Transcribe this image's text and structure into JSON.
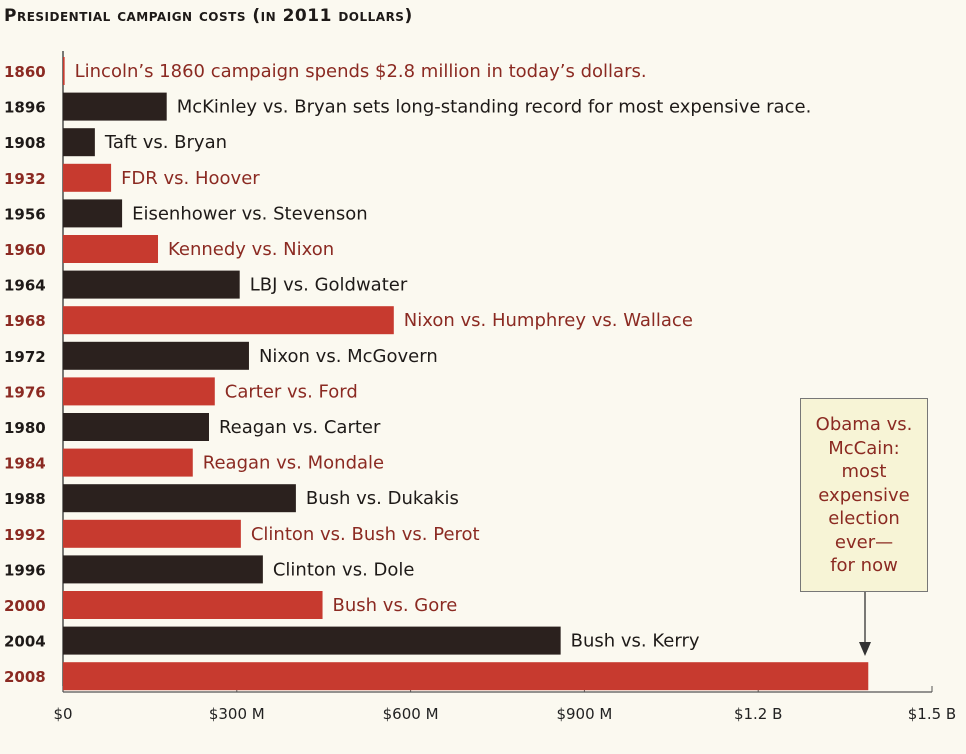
{
  "chart_data": {
    "type": "bar",
    "orientation": "horizontal",
    "title": "Presidential campaign costs (in 2011 dollars)",
    "xlabel": "",
    "ylabel": "",
    "xlim": [
      0,
      1500
    ],
    "unit": "millions of 2011 dollars",
    "x_ticks": [
      0,
      300,
      600,
      900,
      1200,
      1500
    ],
    "x_tick_labels": [
      "$0",
      "$300 M",
      "$600 M",
      "$900 M",
      "$1.2 B",
      "$1.5 B"
    ],
    "grid": false,
    "colors": {
      "red": "#c73a2f",
      "black": "#2b211e",
      "red_text": "#8b2a22",
      "black_text": "#1e1a18"
    },
    "categories": [
      "1860",
      "1896",
      "1908",
      "1932",
      "1956",
      "1960",
      "1964",
      "1968",
      "1972",
      "1976",
      "1980",
      "1984",
      "1988",
      "1992",
      "1996",
      "2000",
      "2004",
      "2008"
    ],
    "values": [
      2.8,
      179,
      55,
      83,
      102,
      164,
      305,
      571,
      321,
      262,
      252,
      224,
      402,
      307,
      345,
      448,
      859,
      1390
    ],
    "bar_colors": [
      "red",
      "black",
      "black",
      "red",
      "black",
      "red",
      "black",
      "red",
      "black",
      "red",
      "black",
      "red",
      "black",
      "red",
      "black",
      "red",
      "black",
      "red"
    ],
    "annotations": [
      "Lincoln’s 1860 campaign spends $2.8 million in today’s dollars.",
      "McKinley vs. Bryan sets long-standing record for most expensive race.",
      "Taft vs. Bryan",
      "FDR vs. Hoover",
      "Eisenhower vs. Stevenson",
      "Kennedy vs. Nixon",
      "LBJ vs. Goldwater",
      "Nixon vs. Humphrey vs. Wallace",
      "Nixon vs. McGovern",
      "Carter vs. Ford",
      "Reagan vs. Carter",
      "Reagan vs. Mondale",
      "Bush vs. Dukakis",
      "Clinton vs. Bush vs. Perot",
      "Clinton vs. Dole",
      "Bush vs. Gore",
      "Bush vs. Kerry",
      ""
    ],
    "callout": "Obama vs.\nMcCain:\nmost\nexpensive\nelection\never—\nfor now"
  }
}
